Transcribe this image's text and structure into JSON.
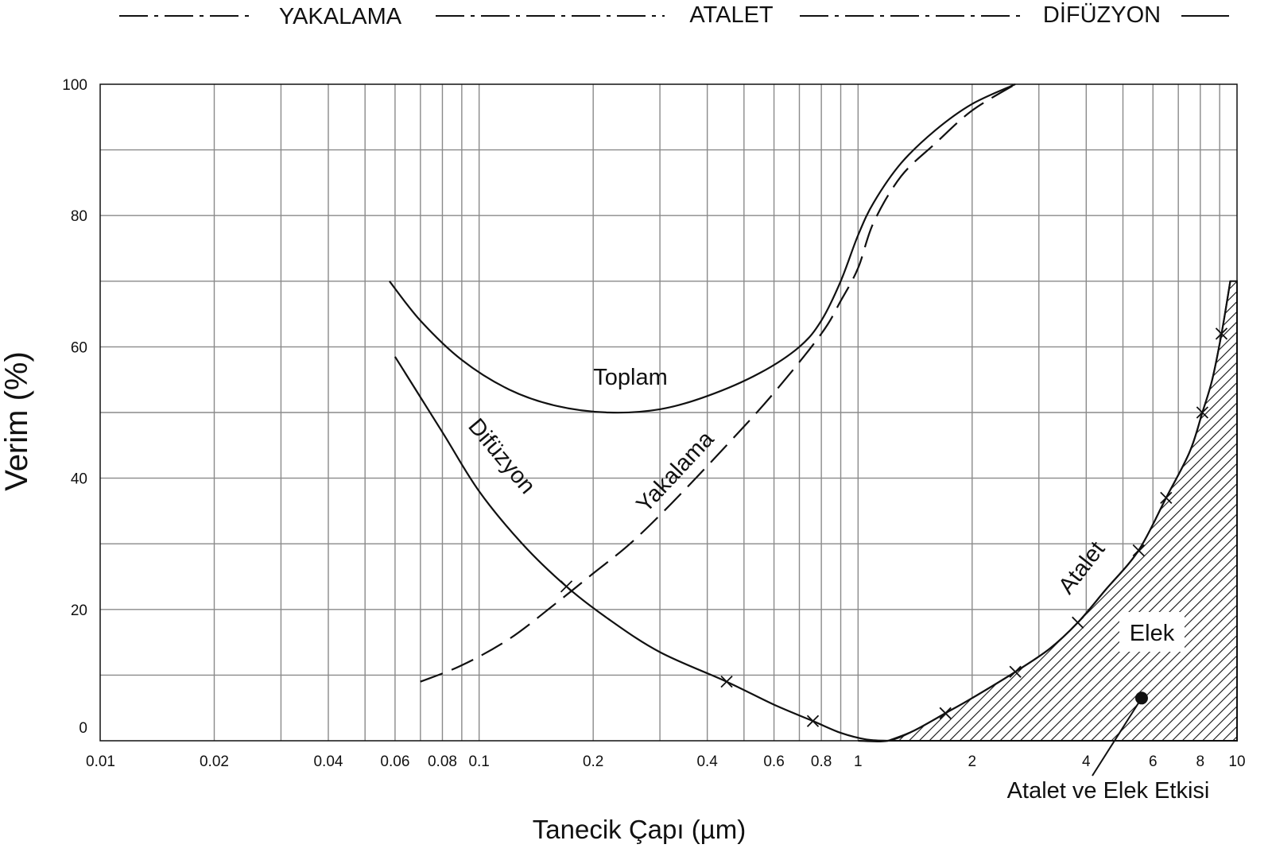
{
  "chart_data": {
    "type": "line",
    "title": "",
    "xlabel": "Tanecik Çapı (µm)",
    "ylabel": "Verim (%)",
    "x_scale": "log",
    "xlim": [
      0.01,
      10
    ],
    "ylim": [
      0,
      100
    ],
    "grid": true,
    "x_ticks": [
      "0.01",
      "0.02",
      "0.04",
      "0.06",
      "0.08",
      "0.1",
      "0.2",
      "0.4",
      "0.6",
      "0.8",
      "1",
      "2",
      "4",
      "6",
      "8",
      "10"
    ],
    "y_ticks": [
      "0",
      "20",
      "40",
      "60",
      "80",
      "100"
    ],
    "mechanism_bands": [
      "YAKALAMA",
      "ATALET",
      "DİFÜZYON"
    ],
    "series": [
      {
        "name": "Toplam",
        "style": "solid",
        "points": [
          [
            0.058,
            70
          ],
          [
            0.07,
            64
          ],
          [
            0.09,
            58
          ],
          [
            0.12,
            53.5
          ],
          [
            0.16,
            51
          ],
          [
            0.22,
            50
          ],
          [
            0.3,
            50.5
          ],
          [
            0.4,
            52.5
          ],
          [
            0.55,
            56
          ],
          [
            0.7,
            60
          ],
          [
            0.8,
            64
          ],
          [
            0.9,
            70
          ],
          [
            1.0,
            77
          ],
          [
            1.1,
            82
          ],
          [
            1.3,
            88
          ],
          [
            1.6,
            93
          ],
          [
            2.0,
            97
          ],
          [
            2.6,
            100
          ]
        ]
      },
      {
        "name": "Difüzyon",
        "style": "solid",
        "marker": "x",
        "points": [
          [
            0.06,
            58.5
          ],
          [
            0.08,
            47
          ],
          [
            0.1,
            38
          ],
          [
            0.13,
            30
          ],
          [
            0.17,
            23.5
          ],
          [
            0.22,
            18.5
          ],
          [
            0.3,
            13.5
          ],
          [
            0.45,
            9
          ],
          [
            0.6,
            5.5
          ],
          [
            0.76,
            3
          ],
          [
            0.9,
            1.2
          ],
          [
            1.05,
            0.2
          ],
          [
            1.2,
            0
          ]
        ]
      },
      {
        "name": "Yakalama",
        "style": "dashed",
        "points": [
          [
            0.07,
            9
          ],
          [
            0.09,
            11.5
          ],
          [
            0.12,
            15.5
          ],
          [
            0.16,
            21
          ],
          [
            0.2,
            25.5
          ],
          [
            0.25,
            30
          ],
          [
            0.32,
            36
          ],
          [
            0.45,
            45
          ],
          [
            0.6,
            53
          ],
          [
            0.8,
            62
          ],
          [
            0.9,
            67
          ],
          [
            1.0,
            72
          ],
          [
            1.1,
            79
          ],
          [
            1.3,
            86
          ],
          [
            1.6,
            91
          ],
          [
            2.0,
            96
          ],
          [
            2.6,
            100
          ]
        ]
      },
      {
        "name": "Atalet",
        "style": "solid",
        "marker": "x",
        "points": [
          [
            1.0,
            0
          ],
          [
            1.2,
            0
          ],
          [
            1.4,
            1.5
          ],
          [
            1.7,
            4.2
          ],
          [
            2.0,
            6.5
          ],
          [
            2.6,
            10.5
          ],
          [
            3.2,
            14
          ],
          [
            3.8,
            18
          ],
          [
            4.5,
            23
          ],
          [
            5.5,
            29
          ],
          [
            6.5,
            37
          ],
          [
            7.5,
            44
          ],
          [
            8.1,
            50
          ],
          [
            8.6,
            55
          ],
          [
            9.1,
            62
          ],
          [
            9.6,
            70
          ]
        ]
      }
    ],
    "shaded_region": {
      "name": "Elek",
      "pattern": "hatched",
      "x_from": 1.2,
      "x_to": 10
    },
    "annotations": [
      {
        "text": "Elek",
        "x": 5.9,
        "y": 15
      },
      {
        "text": "Atalet ve Elek Etkisi",
        "marker_x": 5.6,
        "marker_y": 6.5
      }
    ]
  }
}
